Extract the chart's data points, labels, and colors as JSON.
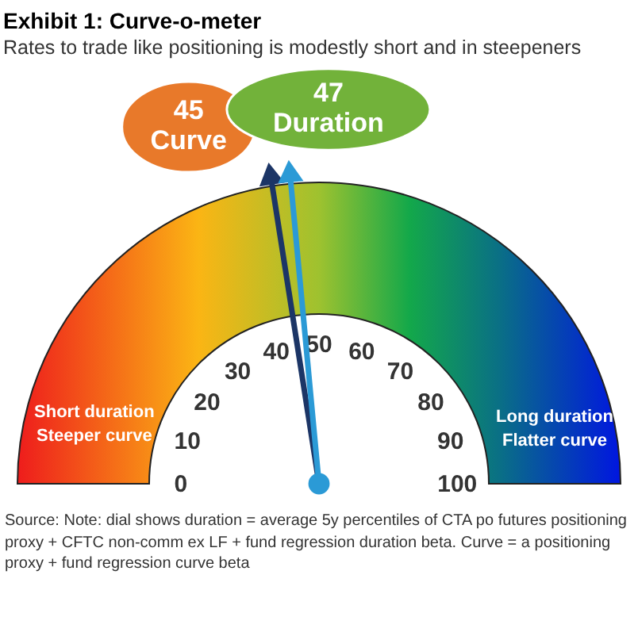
{
  "chart_data": {
    "type": "other",
    "title": "Exhibit 1: Curve-o-meter",
    "subtitle": "Rates to trade like positioning is modestly short and in steepeners",
    "data_labels": true,
    "series": [
      {
        "name": "Curve",
        "values": [
          45
        ],
        "color": "#e8792a"
      },
      {
        "name": "Duration",
        "values": [
          47
        ],
        "color": "#72b23a"
      }
    ],
    "colors": [
      "#1c3566",
      "#2b9ad6"
    ],
    "annotations": [
      "Short duration\nSteeper curve",
      "Long duration\nFlatter curve",
      "Source: Note: dial shows duration = average 5y percentiles of CTA po futures positioning proxy + CFTC non-comm ex LF + fund regression duration beta. Curve = a positioning proxy + fund regression curve beta",
      "0",
      "10",
      "20",
      "30",
      "40",
      "50",
      "60",
      "70",
      "80",
      "90",
      "100"
    ]
  }
}
